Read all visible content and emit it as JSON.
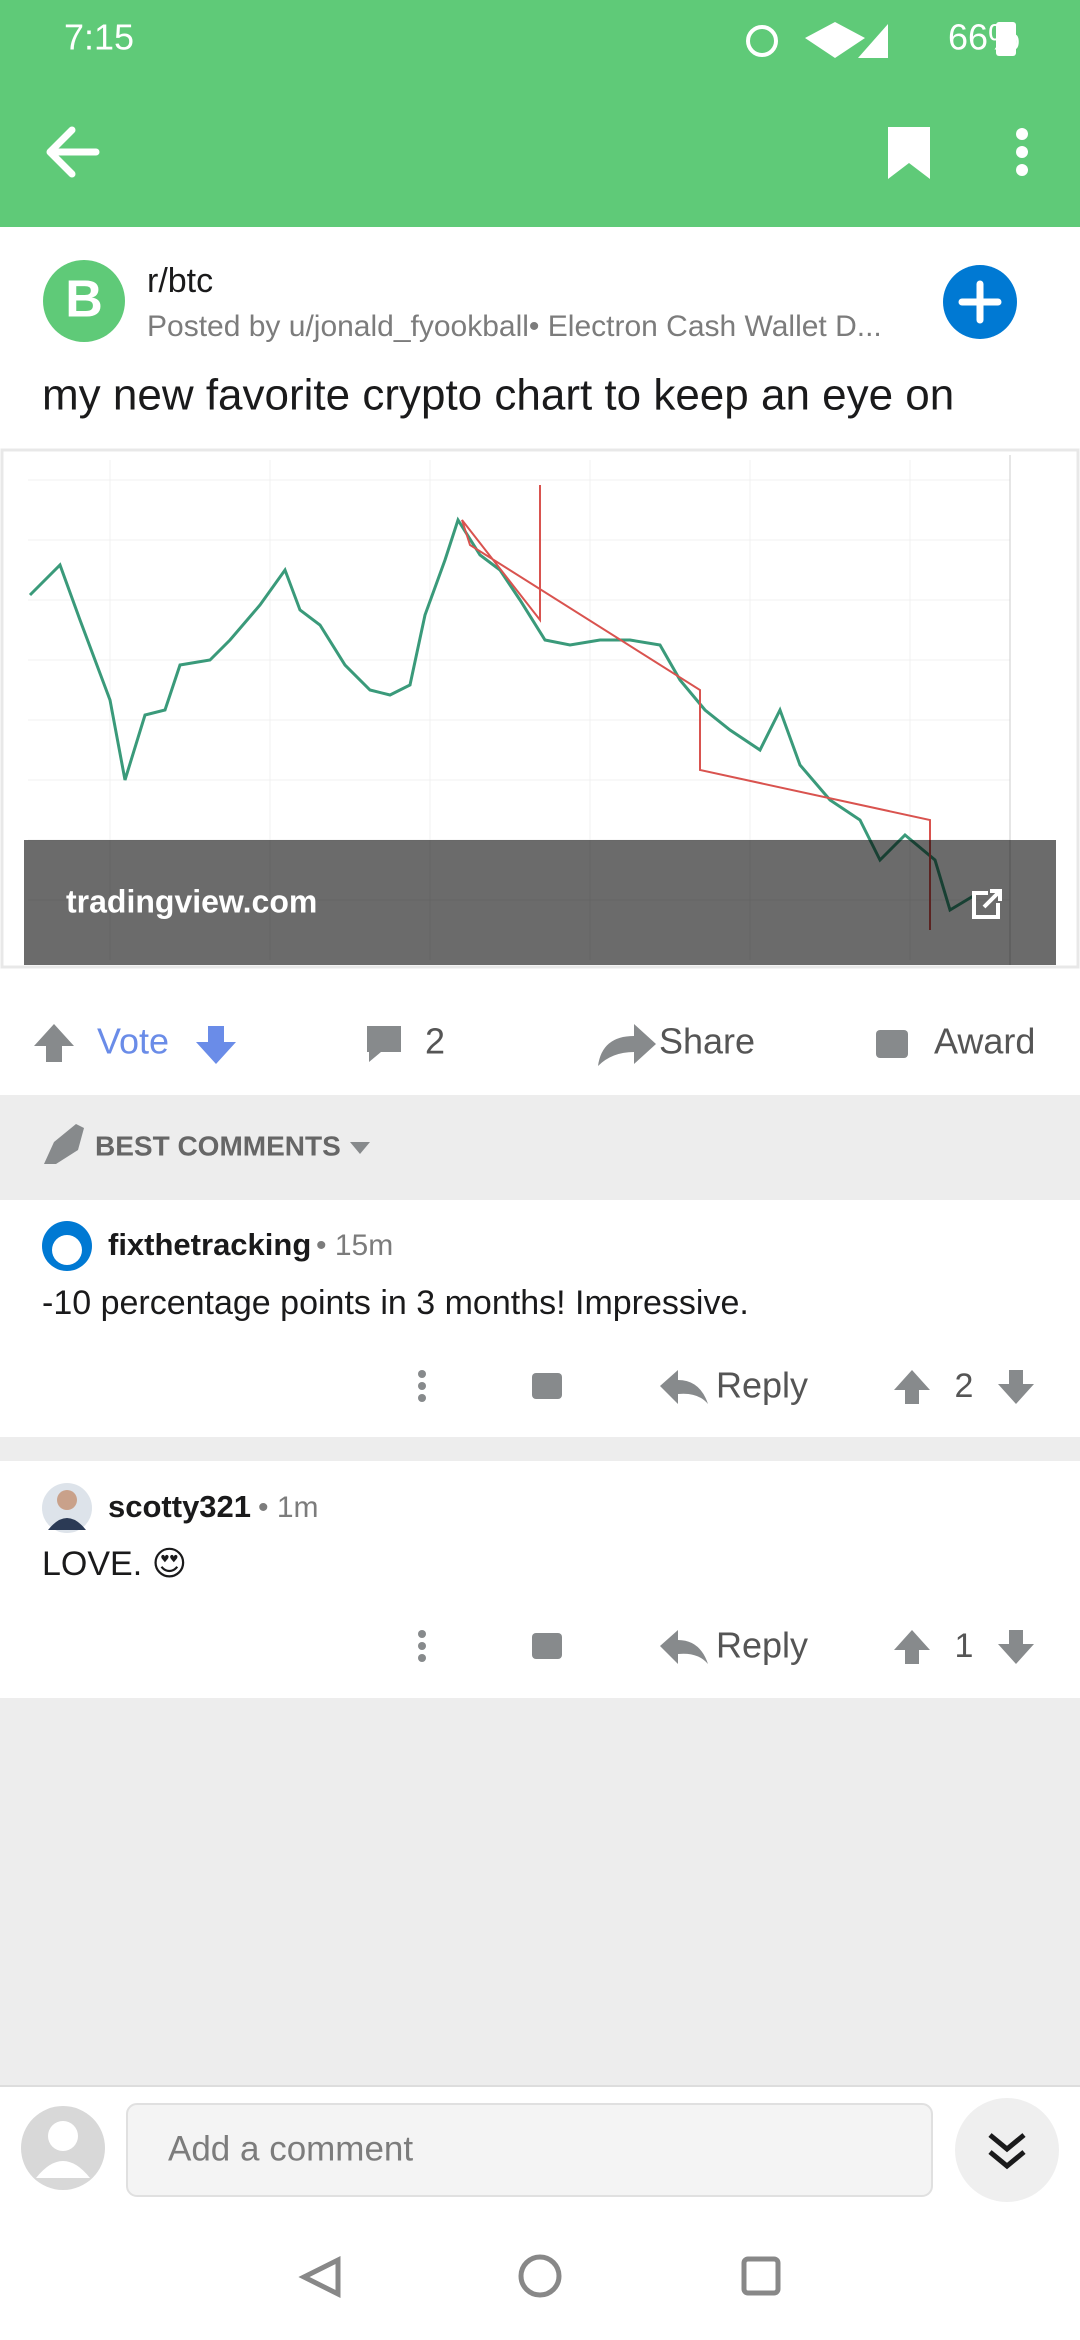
{
  "status_bar": {
    "time": "7:15",
    "battery": "66%"
  },
  "post": {
    "subreddit": "r/btc",
    "byline": "Posted by u/jonald_fyookball• Electron Cash Wallet D...",
    "title": "my new favorite crypto chart to keep an eye on",
    "link_domain": "tradingview.com",
    "actions": {
      "vote": "Vote",
      "comments": "2",
      "share": "Share",
      "award": "Award"
    }
  },
  "comments_header": "BEST COMMENTS",
  "comments": [
    {
      "user": "fixthetracking",
      "age": "• 15m",
      "text": "-10 percentage points in 3 months! Impressive.",
      "reply": "Reply",
      "score": "2"
    },
    {
      "user": "scotty321",
      "age": "• 1m",
      "text": "LOVE. 😍",
      "reply": "Reply",
      "score": "1"
    }
  ],
  "composer": {
    "placeholder": "Add a comment"
  }
}
